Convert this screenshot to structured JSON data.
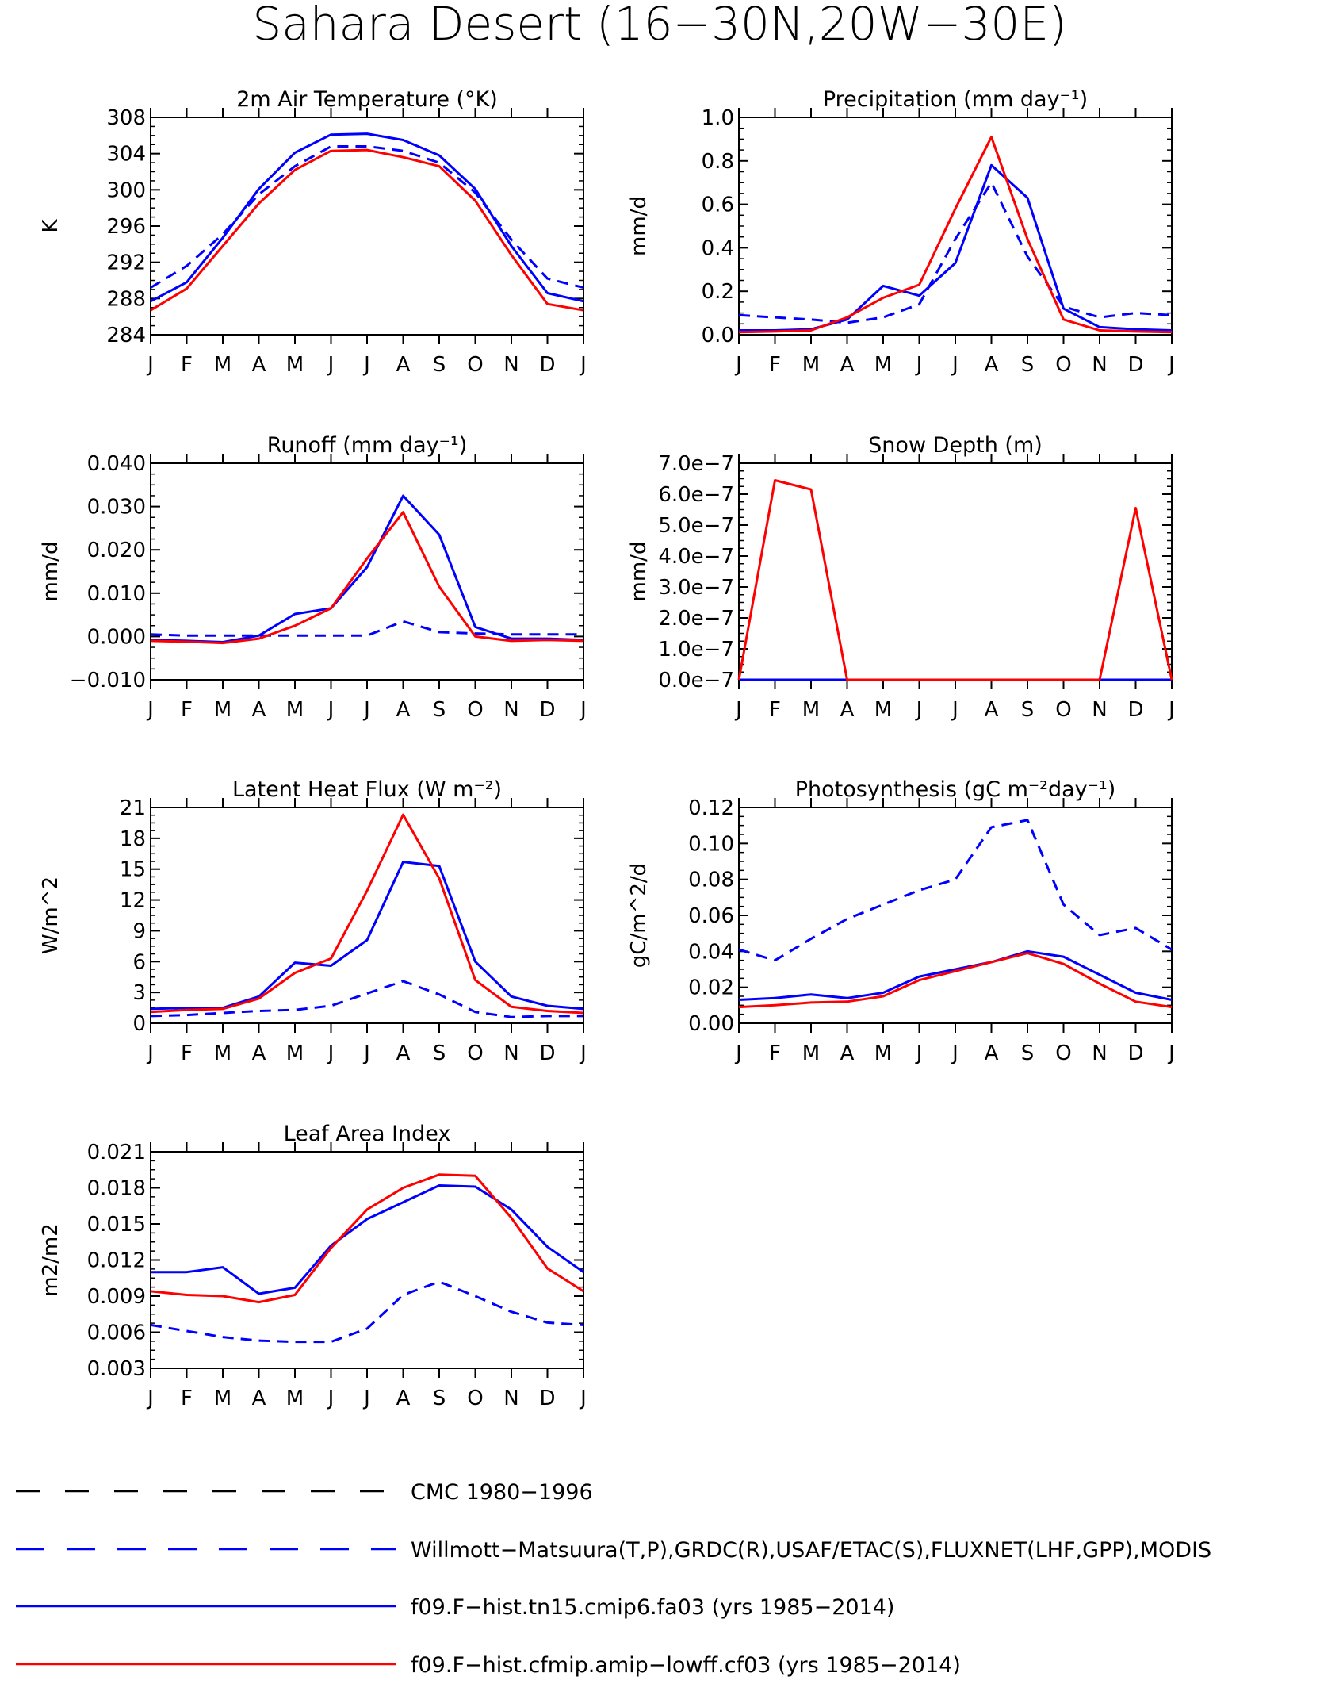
{
  "main_title": "Sahara Desert (16−30N,20W−30E)",
  "months": [
    "J",
    "F",
    "M",
    "A",
    "M",
    "J",
    "J",
    "A",
    "S",
    "O",
    "N",
    "D",
    "J"
  ],
  "colors": {
    "obs": "#0000ff",
    "model1": "#0000ff",
    "model2": "#ff0000",
    "legend_black": "#000000"
  },
  "legend": [
    {
      "label": "CMC 1980−1996",
      "color": "#000000",
      "dash": true
    },
    {
      "label": "Willmott−Matsuura(T,P),GRDC(R),USAF/ETAC(S),FLUXNET(LHF,GPP),MODIS",
      "color": "#0000ff",
      "dash": true
    },
    {
      "label": "f09.F−hist.tn15.cmip6.fa03 (yrs 1985−2014)",
      "color": "#0000ff",
      "dash": false
    },
    {
      "label": "f09.F−hist.cfmip.amip−lowff.cf03 (yrs 1985−2014)",
      "color": "#ff0000",
      "dash": false
    }
  ],
  "chart_data": [
    {
      "type": "line",
      "title": "2m Air Temperature (°K)",
      "ylabel": "K",
      "ylim": [
        284,
        308
      ],
      "yticks": [
        "284",
        "288",
        "292",
        "296",
        "300",
        "304",
        "308"
      ],
      "series": [
        {
          "values": [
            289.2,
            291.6,
            295.1,
            299.5,
            302.6,
            304.8,
            304.8,
            304.3,
            303.0,
            299.7,
            294.5,
            290.2,
            289.2
          ],
          "color": "#0000ff",
          "dash": true
        },
        {
          "values": [
            287.7,
            289.8,
            294.7,
            300.1,
            304.1,
            306.1,
            306.2,
            305.5,
            303.8,
            300.1,
            293.8,
            288.6,
            287.7
          ],
          "color": "#0000ff",
          "dash": false
        },
        {
          "values": [
            286.7,
            289.1,
            293.8,
            298.5,
            302.2,
            304.3,
            304.4,
            303.6,
            302.6,
            298.8,
            292.8,
            287.4,
            286.7
          ],
          "color": "#ff0000",
          "dash": false
        }
      ]
    },
    {
      "type": "line",
      "title": "Precipitation (mm day⁻¹)",
      "ylabel": "mm/d",
      "ylim": [
        0,
        1.0
      ],
      "yticks": [
        "0.0",
        "0.2",
        "0.4",
        "0.6",
        "0.8",
        "1.0"
      ],
      "series": [
        {
          "values": [
            0.09,
            0.08,
            0.07,
            0.055,
            0.08,
            0.14,
            0.44,
            0.7,
            0.36,
            0.13,
            0.08,
            0.1,
            0.09
          ],
          "color": "#0000ff",
          "dash": true
        },
        {
          "values": [
            0.02,
            0.02,
            0.025,
            0.07,
            0.225,
            0.18,
            0.33,
            0.78,
            0.63,
            0.12,
            0.035,
            0.025,
            0.02
          ],
          "color": "#0000ff",
          "dash": false
        },
        {
          "values": [
            0.012,
            0.015,
            0.02,
            0.08,
            0.17,
            0.23,
            0.58,
            0.91,
            0.44,
            0.07,
            0.02,
            0.015,
            0.012
          ],
          "color": "#ff0000",
          "dash": false
        }
      ]
    },
    {
      "type": "line",
      "title": "Runoff (mm day⁻¹)",
      "ylabel": "mm/d",
      "ylim": [
        -0.01,
        0.04
      ],
      "yticks": [
        "−0.010",
        "0.000",
        "0.010",
        "0.020",
        "0.030",
        "0.040"
      ],
      "series": [
        {
          "values": [
            0.0005,
            0.0002,
            0.0002,
            0.0002,
            0.0002,
            0.0002,
            0.0002,
            0.0035,
            0.001,
            0.0007,
            0.0005,
            0.0005,
            0.0005
          ],
          "color": "#0000ff",
          "dash": true
        },
        {
          "values": [
            -0.0008,
            -0.001,
            -0.0013,
            0.0002,
            0.0052,
            0.0065,
            0.016,
            0.0325,
            0.0235,
            0.0022,
            -0.0005,
            -0.0005,
            -0.0008
          ],
          "color": "#0000ff",
          "dash": false
        },
        {
          "values": [
            -0.001,
            -0.0012,
            -0.0015,
            -0.0005,
            0.0025,
            0.0065,
            0.018,
            0.0287,
            0.0115,
            0.0,
            -0.001,
            -0.0008,
            -0.001
          ],
          "color": "#ff0000",
          "dash": false
        }
      ]
    },
    {
      "type": "line",
      "title": "Snow Depth (m)",
      "ylabel": "mm/d",
      "ylim": [
        0,
        7e-07
      ],
      "yticks": [
        "0.0e−7",
        "1.0e−7",
        "2.0e−7",
        "3.0e−7",
        "4.0e−7",
        "5.0e−7",
        "6.0e−7",
        "7.0e−7"
      ],
      "series": [
        {
          "values": [
            0,
            0,
            0,
            0,
            0,
            0,
            0,
            0,
            0,
            0,
            0,
            0,
            0
          ],
          "color": "#0000ff",
          "dash": false
        },
        {
          "values": [
            0,
            6.45e-07,
            6.15e-07,
            0,
            0,
            0,
            0,
            0,
            0,
            0,
            0,
            5.55e-07,
            0
          ],
          "color": "#ff0000",
          "dash": false
        }
      ]
    },
    {
      "type": "line",
      "title": "Latent Heat Flux (W m⁻²)",
      "ylabel": "W/m^2",
      "ylim": [
        0,
        21
      ],
      "yticks": [
        "0",
        "3",
        "6",
        "9",
        "12",
        "15",
        "18",
        "21"
      ],
      "series": [
        {
          "values": [
            0.7,
            0.8,
            1.0,
            1.2,
            1.3,
            1.7,
            2.9,
            4.1,
            2.8,
            1.1,
            0.6,
            0.7,
            0.7
          ],
          "color": "#0000ff",
          "dash": true
        },
        {
          "values": [
            1.4,
            1.5,
            1.5,
            2.6,
            5.9,
            5.6,
            8.1,
            15.7,
            15.3,
            6.0,
            2.6,
            1.7,
            1.4
          ],
          "color": "#0000ff",
          "dash": false
        },
        {
          "values": [
            1.1,
            1.3,
            1.4,
            2.4,
            4.9,
            6.3,
            12.9,
            20.3,
            14.1,
            4.2,
            1.6,
            1.2,
            1.0
          ],
          "color": "#ff0000",
          "dash": false
        }
      ]
    },
    {
      "type": "line",
      "title": "Photosynthesis (gC m⁻²day⁻¹)",
      "ylabel": "gC/m^2/d",
      "ylim": [
        0,
        0.12
      ],
      "yticks": [
        "0.00",
        "0.02",
        "0.04",
        "0.06",
        "0.08",
        "0.10",
        "0.12"
      ],
      "series": [
        {
          "values": [
            0.041,
            0.035,
            0.047,
            0.058,
            0.066,
            0.074,
            0.08,
            0.109,
            0.113,
            0.066,
            0.049,
            0.053,
            0.041
          ],
          "color": "#0000ff",
          "dash": true
        },
        {
          "values": [
            0.013,
            0.014,
            0.016,
            0.014,
            0.017,
            0.026,
            0.03,
            0.034,
            0.04,
            0.037,
            0.027,
            0.017,
            0.013
          ],
          "color": "#0000ff",
          "dash": false
        },
        {
          "values": [
            0.009,
            0.01,
            0.0115,
            0.012,
            0.015,
            0.024,
            0.029,
            0.034,
            0.039,
            0.033,
            0.022,
            0.012,
            0.009
          ],
          "color": "#ff0000",
          "dash": false
        }
      ]
    },
    {
      "type": "line",
      "title": "Leaf Area Index",
      "ylabel": "m2/m2",
      "ylim": [
        0.003,
        0.021
      ],
      "yticks": [
        "0.003",
        "0.006",
        "0.009",
        "0.012",
        "0.015",
        "0.018",
        "0.021"
      ],
      "series": [
        {
          "values": [
            0.0066,
            0.0061,
            0.0056,
            0.0053,
            0.0052,
            0.0052,
            0.0063,
            0.0091,
            0.0102,
            0.009,
            0.0077,
            0.0068,
            0.0066
          ],
          "color": "#0000ff",
          "dash": true
        },
        {
          "values": [
            0.011,
            0.011,
            0.0114,
            0.0092,
            0.0097,
            0.0132,
            0.0154,
            0.0168,
            0.0182,
            0.0181,
            0.0162,
            0.0131,
            0.011
          ],
          "color": "#0000ff",
          "dash": false
        },
        {
          "values": [
            0.0094,
            0.0091,
            0.009,
            0.0085,
            0.0091,
            0.013,
            0.0162,
            0.018,
            0.0191,
            0.019,
            0.0155,
            0.0113,
            0.0094
          ],
          "color": "#ff0000",
          "dash": false
        }
      ]
    }
  ]
}
